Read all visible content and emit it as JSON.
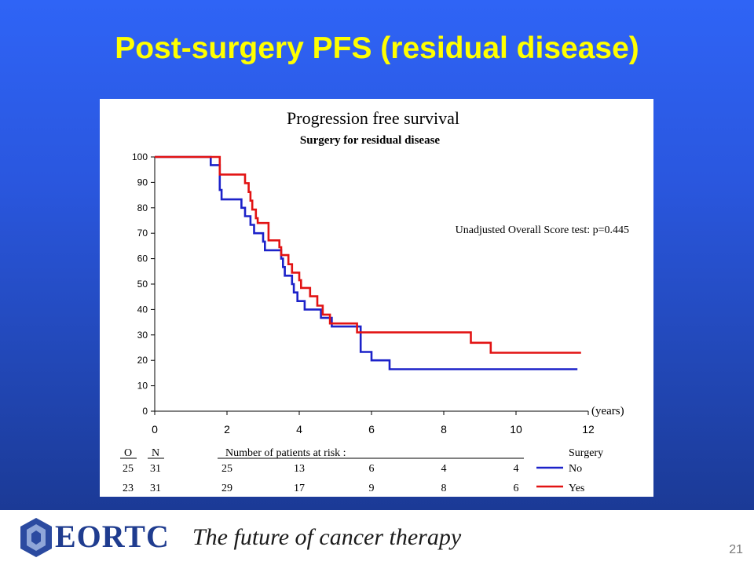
{
  "slide": {
    "title": "Post-surgery PFS (residual disease)",
    "page_number": "21"
  },
  "footer": {
    "brand": "EORTC",
    "tagline": "The future of cancer therapy"
  },
  "colors": {
    "no": "#1c22c9",
    "yes": "#e21313",
    "title": "#ffff00"
  },
  "chart_data": {
    "type": "line",
    "title": "Progression free survival",
    "subtitle": "Surgery for residual disease",
    "xlabel": "(years)",
    "ylabel": "",
    "xlim": [
      0,
      12
    ],
    "ylim": [
      0,
      100
    ],
    "xticks": [
      0,
      2,
      4,
      6,
      8,
      10,
      12
    ],
    "yticks": [
      0,
      10,
      20,
      30,
      40,
      50,
      60,
      70,
      80,
      90,
      100
    ],
    "annotation": "Unadjusted Overall Score test: p=0.445",
    "series": [
      {
        "name": "No",
        "color": "#1c22c9",
        "steps": [
          [
            0,
            100
          ],
          [
            1.55,
            100
          ],
          [
            1.55,
            96.8
          ],
          [
            1.8,
            96.8
          ],
          [
            1.8,
            87
          ],
          [
            1.85,
            87
          ],
          [
            1.85,
            83.3
          ],
          [
            2.4,
            83.3
          ],
          [
            2.4,
            80
          ],
          [
            2.5,
            80
          ],
          [
            2.5,
            76.7
          ],
          [
            2.65,
            76.7
          ],
          [
            2.65,
            73.3
          ],
          [
            2.75,
            73.3
          ],
          [
            2.75,
            70
          ],
          [
            3.0,
            70
          ],
          [
            3.0,
            66.7
          ],
          [
            3.05,
            66.7
          ],
          [
            3.05,
            63.3
          ],
          [
            3.5,
            63.3
          ],
          [
            3.5,
            60
          ],
          [
            3.55,
            60
          ],
          [
            3.55,
            56.7
          ],
          [
            3.6,
            56.7
          ],
          [
            3.6,
            53.3
          ],
          [
            3.8,
            53.3
          ],
          [
            3.8,
            50
          ],
          [
            3.85,
            50
          ],
          [
            3.85,
            46.7
          ],
          [
            3.95,
            46.7
          ],
          [
            3.95,
            43.3
          ],
          [
            4.15,
            43.3
          ],
          [
            4.15,
            40
          ],
          [
            4.6,
            40
          ],
          [
            4.6,
            36.7
          ],
          [
            4.9,
            36.7
          ],
          [
            4.9,
            33.3
          ],
          [
            5.7,
            33.3
          ],
          [
            5.7,
            23.3
          ],
          [
            6.0,
            23.3
          ],
          [
            6.0,
            20
          ],
          [
            6.5,
            20
          ],
          [
            6.5,
            16.5
          ],
          [
            11.7,
            16.5
          ]
        ]
      },
      {
        "name": "Yes",
        "color": "#e21313",
        "steps": [
          [
            0,
            100
          ],
          [
            1.8,
            100
          ],
          [
            1.8,
            93.1
          ],
          [
            2.5,
            93.1
          ],
          [
            2.5,
            89.7
          ],
          [
            2.6,
            89.7
          ],
          [
            2.6,
            86.2
          ],
          [
            2.65,
            86.2
          ],
          [
            2.65,
            82.8
          ],
          [
            2.7,
            82.8
          ],
          [
            2.7,
            79.3
          ],
          [
            2.8,
            79.3
          ],
          [
            2.8,
            75.9
          ],
          [
            2.85,
            75.9
          ],
          [
            2.85,
            74
          ],
          [
            3.15,
            74
          ],
          [
            3.15,
            67.2
          ],
          [
            3.45,
            67.2
          ],
          [
            3.45,
            64.5
          ],
          [
            3.5,
            64.5
          ],
          [
            3.5,
            61.4
          ],
          [
            3.7,
            61.4
          ],
          [
            3.7,
            57.8
          ],
          [
            3.8,
            57.8
          ],
          [
            3.8,
            54.5
          ],
          [
            4.0,
            54.5
          ],
          [
            4.0,
            51.5
          ],
          [
            4.05,
            51.5
          ],
          [
            4.05,
            48.5
          ],
          [
            4.3,
            48.5
          ],
          [
            4.3,
            45.2
          ],
          [
            4.5,
            45.2
          ],
          [
            4.5,
            41.5
          ],
          [
            4.65,
            41.5
          ],
          [
            4.65,
            38
          ],
          [
            4.85,
            38
          ],
          [
            4.85,
            34.5
          ],
          [
            5.6,
            34.5
          ],
          [
            5.6,
            31
          ],
          [
            8.75,
            31
          ],
          [
            8.75,
            26.9
          ],
          [
            9.3,
            26.9
          ],
          [
            9.3,
            23
          ],
          [
            11.8,
            23
          ]
        ]
      }
    ],
    "risk_table": {
      "header_o": "O",
      "header_n": "N",
      "header_title": "Number of patients at risk :",
      "header_group": "Surgery",
      "rows": [
        {
          "o": "25",
          "n": "31",
          "at_risk": [
            "25",
            "13",
            "6",
            "4",
            "4"
          ],
          "label": "No"
        },
        {
          "o": "23",
          "n": "31",
          "at_risk": [
            "29",
            "17",
            "9",
            "8",
            "6"
          ],
          "label": "Yes"
        }
      ]
    }
  }
}
